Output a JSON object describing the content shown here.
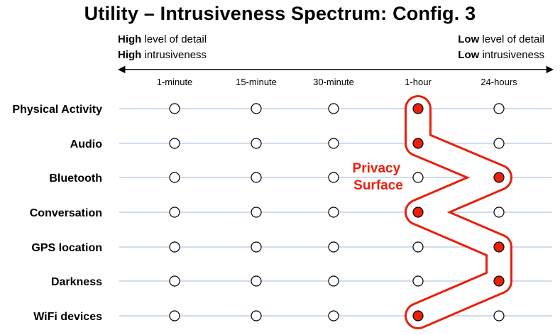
{
  "title": "Utility – Intrusiveness Spectrum: Config. 3",
  "left_note": {
    "line1_bold": "High",
    "line1_rest": " level of detail",
    "line2_bold": "High",
    "line2_rest": " intrusiveness"
  },
  "right_note": {
    "line1_bold": "Low",
    "line1_rest": " level of detail",
    "line2_bold": "Low",
    "line2_rest": " intrusiveness"
  },
  "columns": [
    "1-minute",
    "15-minute",
    "30-minute",
    "1-hour",
    "24-hours"
  ],
  "rows": [
    "Physical Activity",
    "Audio",
    "Bluetooth",
    "Conversation",
    "GPS location",
    "Darkness",
    "WiFi devices"
  ],
  "selected": {
    "Physical Activity": "1-hour",
    "Audio": "1-hour",
    "Bluetooth": "24-hours",
    "Conversation": "1-hour",
    "GPS location": "24-hours",
    "Darkness": "24-hours",
    "WiFi devices": "1-hour"
  },
  "annotation": [
    "Privacy",
    "Surface"
  ],
  "colors": {
    "highlight": "#e8200c",
    "row_line": "#9dbbe0",
    "arrow": "#000000"
  }
}
